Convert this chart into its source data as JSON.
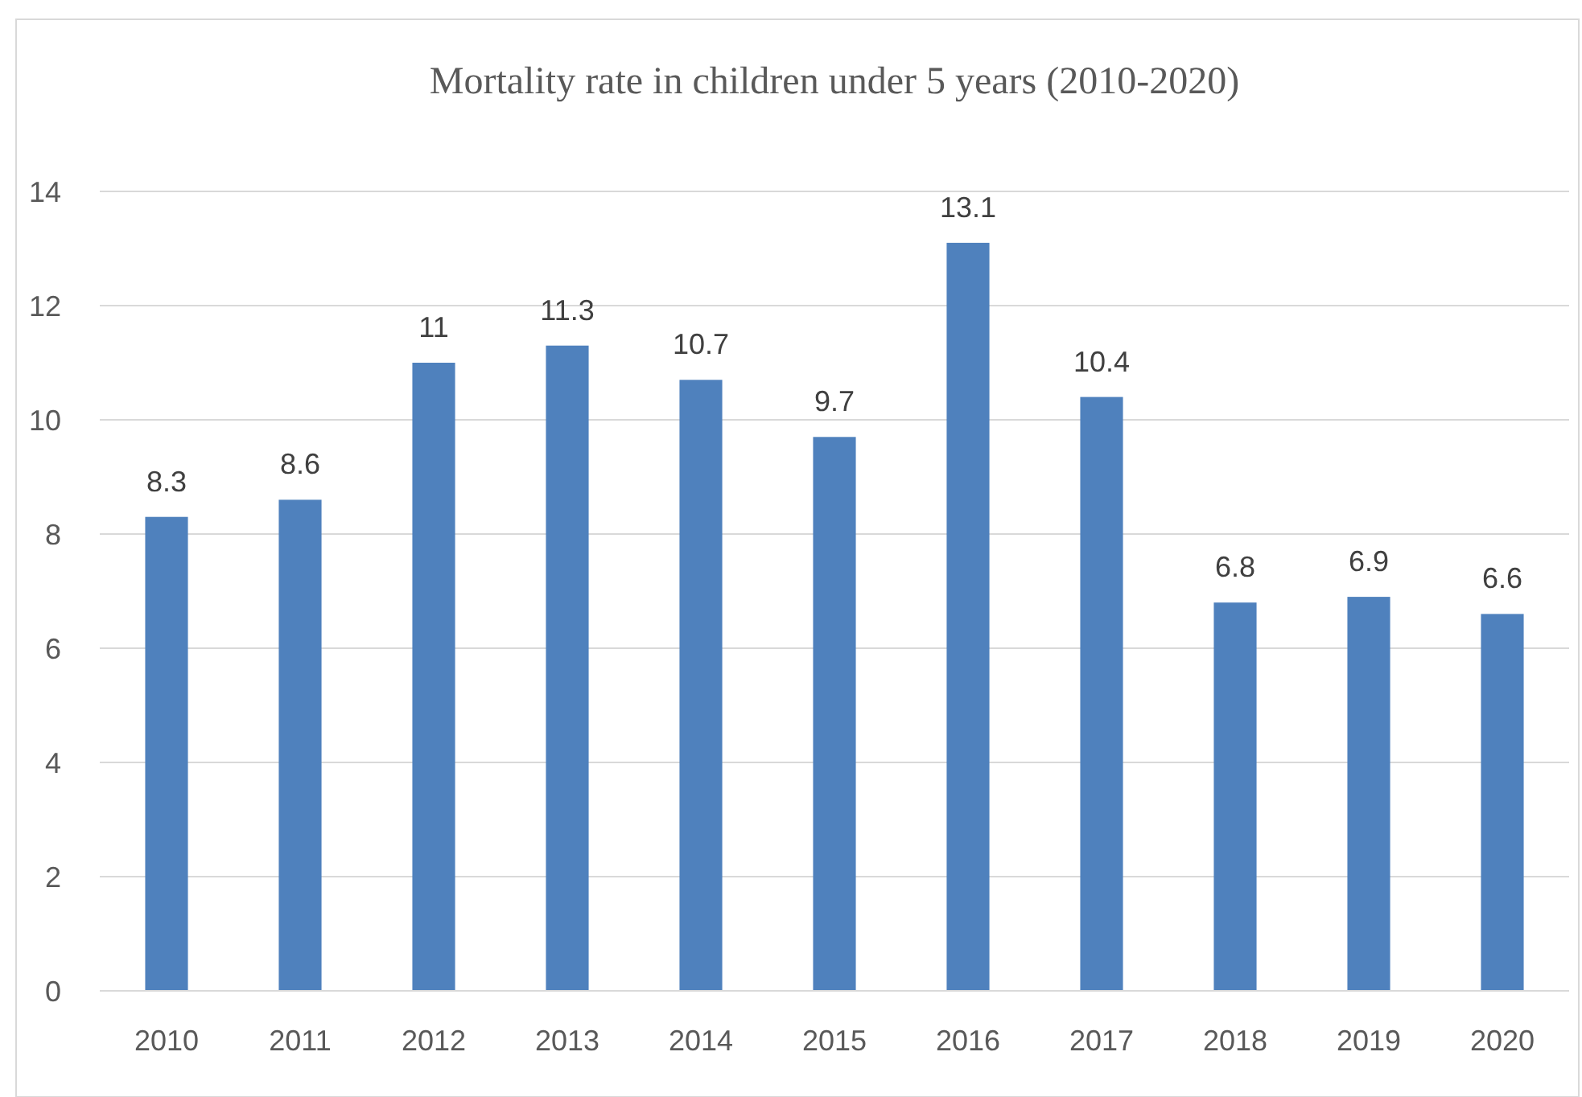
{
  "chart_data": {
    "type": "bar",
    "title": "Mortality rate in children under 5 years (2010-2020)",
    "categories": [
      "2010",
      "2011",
      "2012",
      "2013",
      "2014",
      "2015",
      "2016",
      "2017",
      "2018",
      "2019",
      "2020"
    ],
    "values": [
      8.3,
      8.6,
      11,
      11.3,
      10.7,
      9.7,
      13.1,
      10.4,
      6.8,
      6.9,
      6.6
    ],
    "color": "#4f81bd",
    "ylim": [
      0,
      14
    ],
    "yticks": [
      0,
      2,
      4,
      6,
      8,
      10,
      12,
      14
    ],
    "grid": "y",
    "data_labels": true
  }
}
